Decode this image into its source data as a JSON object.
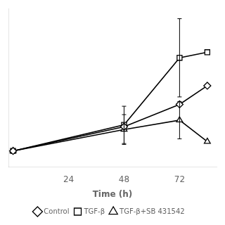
{
  "chart_data": {
    "type": "line",
    "x": [
      0,
      48,
      72,
      84
    ],
    "series": [
      {
        "name": "Control",
        "color": "#000000",
        "marker": "diamond",
        "line_style": "solid",
        "values": [
          0.02,
          0.28,
          0.52,
          0.72
        ],
        "errors": [
          0.0,
          0.0,
          0.0,
          0.0
        ]
      },
      {
        "name": "TGF-β",
        "color": "#000000",
        "marker": "square",
        "line_style": "solid",
        "values": [
          0.02,
          0.3,
          1.02,
          1.08
        ],
        "errors": [
          0.0,
          0.2,
          0.42,
          0.0
        ]
      },
      {
        "name": "TGF-β+SB 431542",
        "color": "#000000",
        "marker": "triangle",
        "line_style": "solid",
        "values": [
          0.02,
          0.25,
          0.35,
          0.12
        ],
        "errors": [
          0.0,
          0.16,
          0.2,
          0.0
        ]
      }
    ],
    "xlabel": "Time (h)",
    "xlim": [
      -2,
      88
    ],
    "xticks": [
      24,
      48,
      72
    ],
    "ylim": [
      -0.15,
      1.55
    ],
    "tick_labels": "x",
    "grid": false,
    "legend": "bottom"
  }
}
